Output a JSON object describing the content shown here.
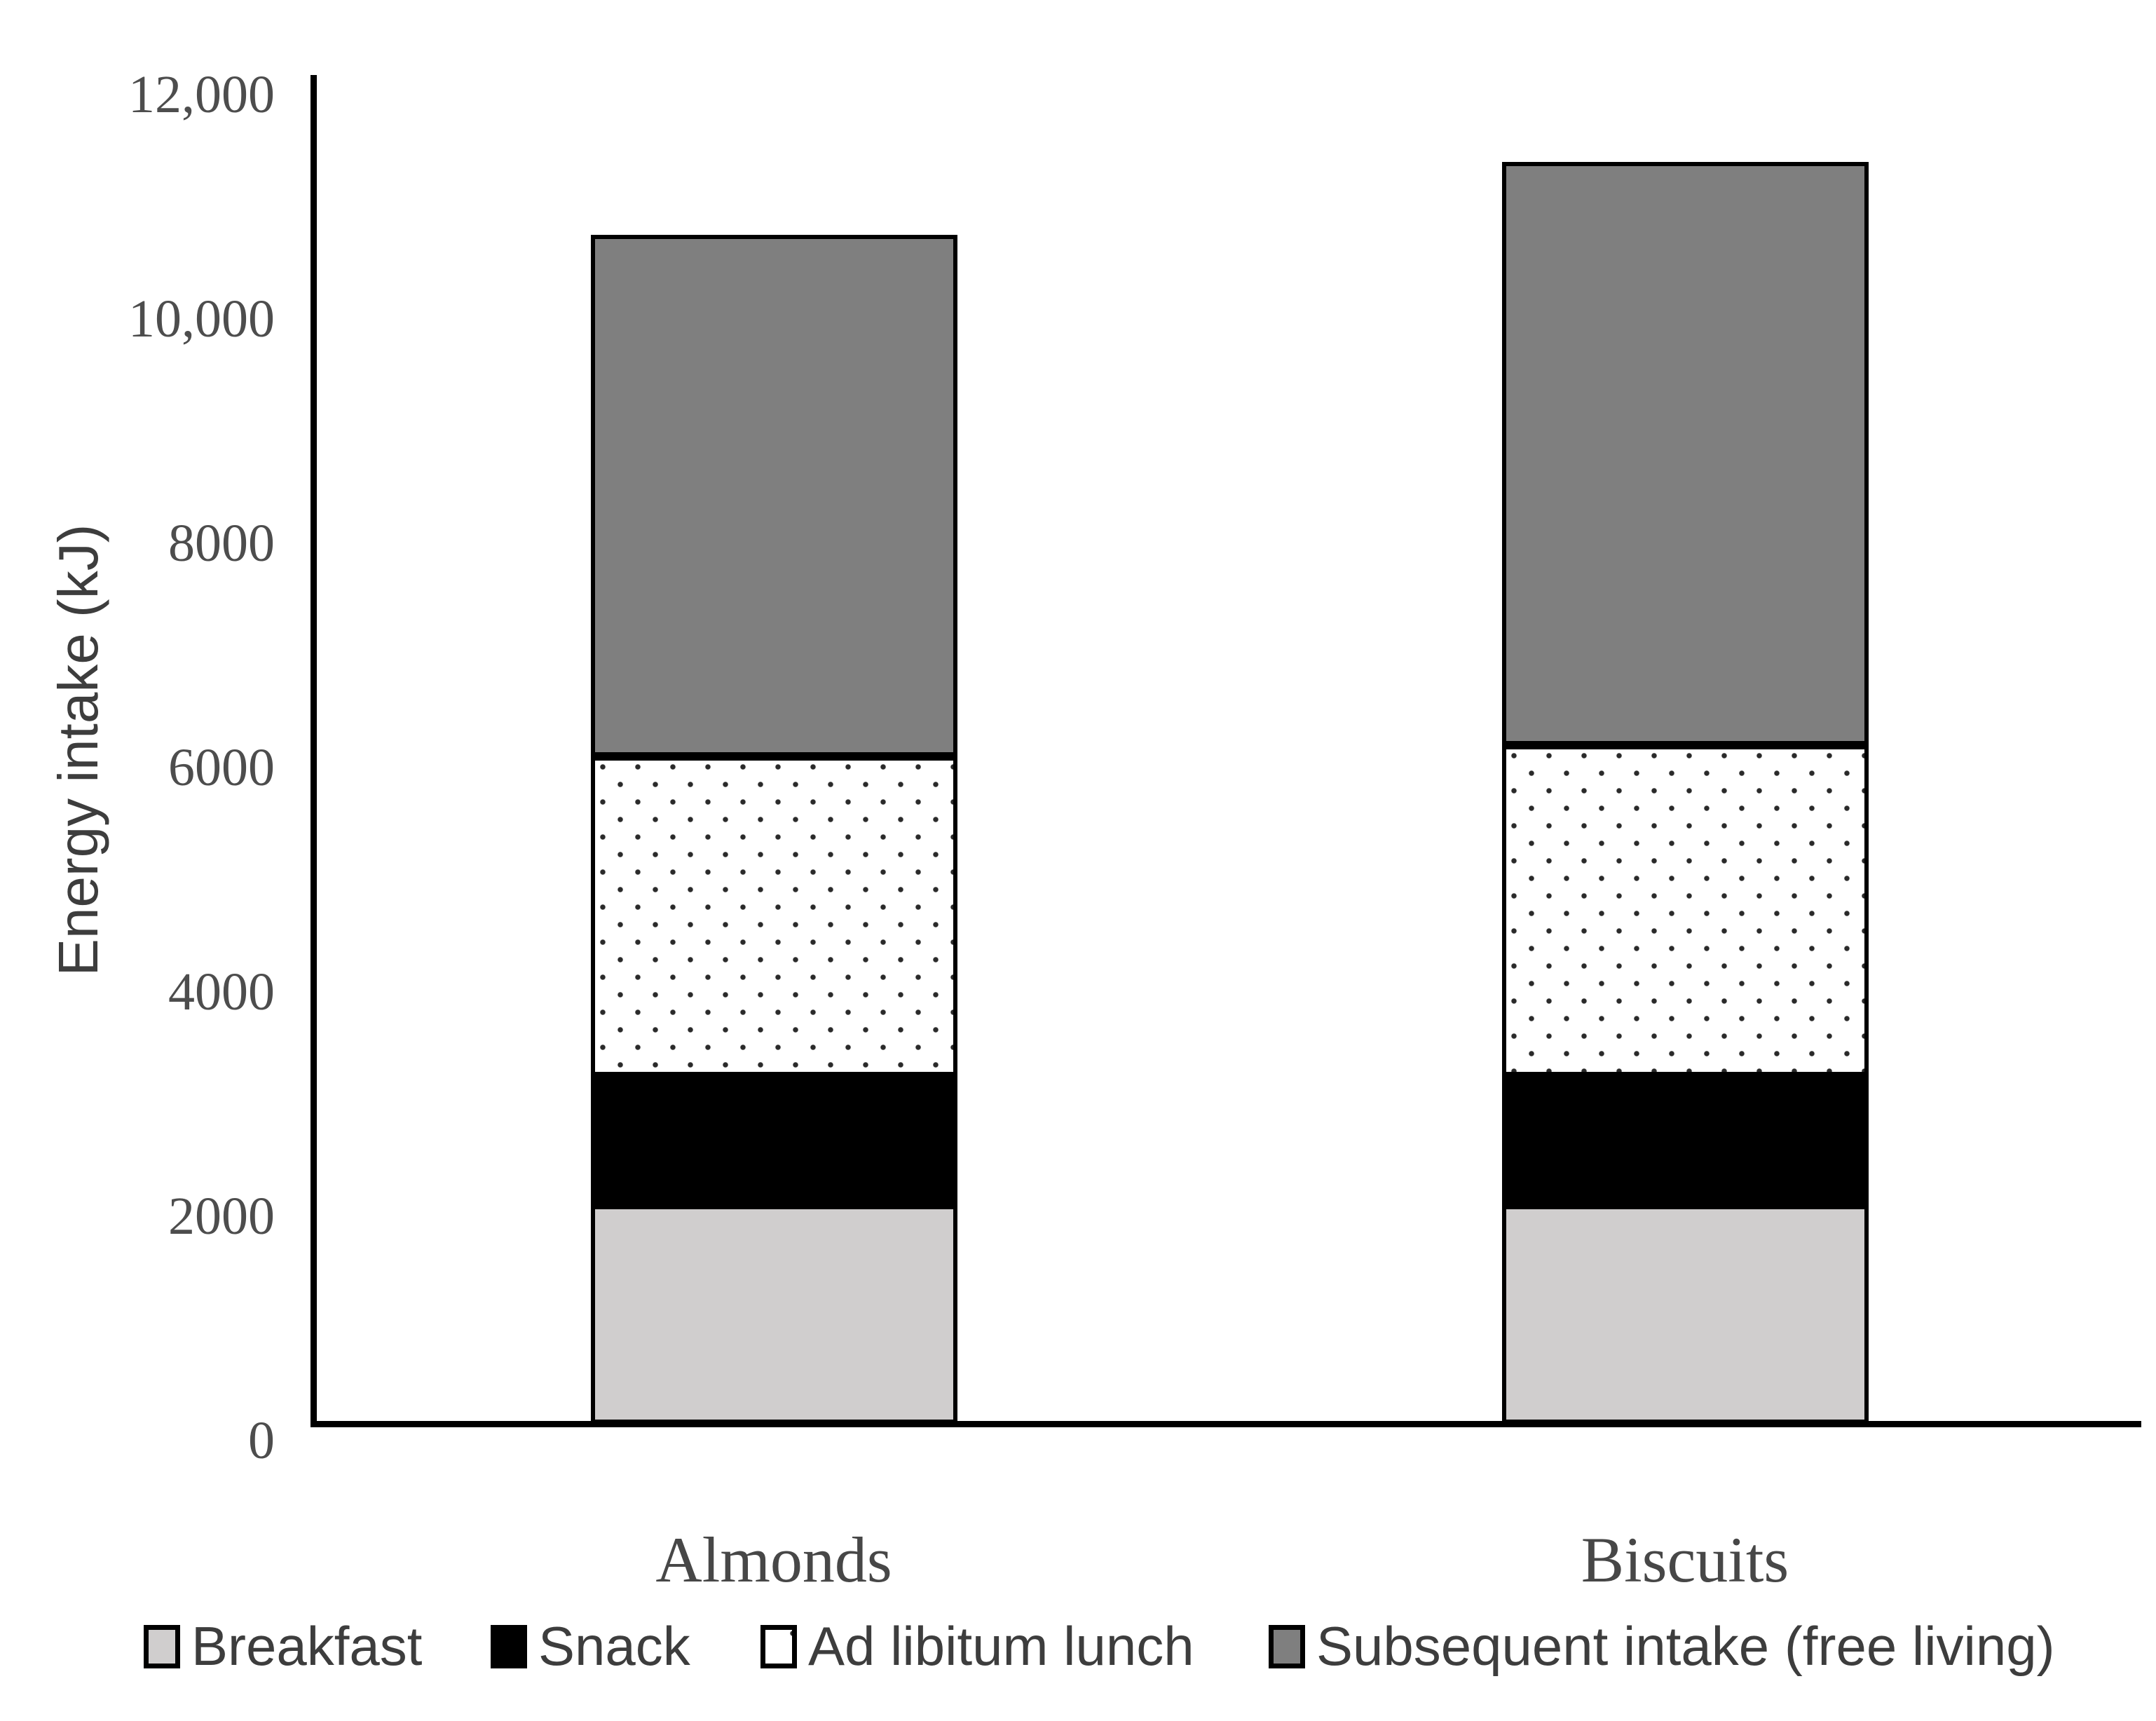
{
  "chart_data": {
    "type": "bar",
    "stacked": true,
    "title": "",
    "categories": [
      "Almonds",
      "Biscuits"
    ],
    "series": [
      {
        "name": "Breakfast",
        "values": [
          1950,
          1950
        ],
        "color": "#d0cece",
        "pattern": "solid"
      },
      {
        "name": "Snack",
        "values": [
          1150,
          1150
        ],
        "color": "#000000",
        "pattern": "solid"
      },
      {
        "name": "Ad libitum lunch",
        "values": [
          2850,
          2950
        ],
        "color": "#ffffff",
        "pattern": "dots"
      },
      {
        "name": "Subsequent intake (free living)",
        "values": [
          4650,
          5200
        ],
        "color": "#7f7f7f",
        "pattern": "solid"
      }
    ],
    "totals_kJ_estimated": [
      10600,
      11250
    ],
    "xlabel": "",
    "ylabel": "Energy intake (kJ)",
    "ylim": [
      0,
      12000
    ],
    "yticks": [
      {
        "value": 0,
        "label": "0"
      },
      {
        "value": 2000,
        "label": "2000"
      },
      {
        "value": 4000,
        "label": "4000"
      },
      {
        "value": 6000,
        "label": "6000"
      },
      {
        "value": 8000,
        "label": "8000"
      },
      {
        "value": 10000,
        "label": "10,000"
      },
      {
        "value": 12000,
        "label": "12,000"
      }
    ],
    "grid": false,
    "legend_position": "bottom",
    "bar_border_color": "#000000",
    "axis_color": "#000000"
  }
}
